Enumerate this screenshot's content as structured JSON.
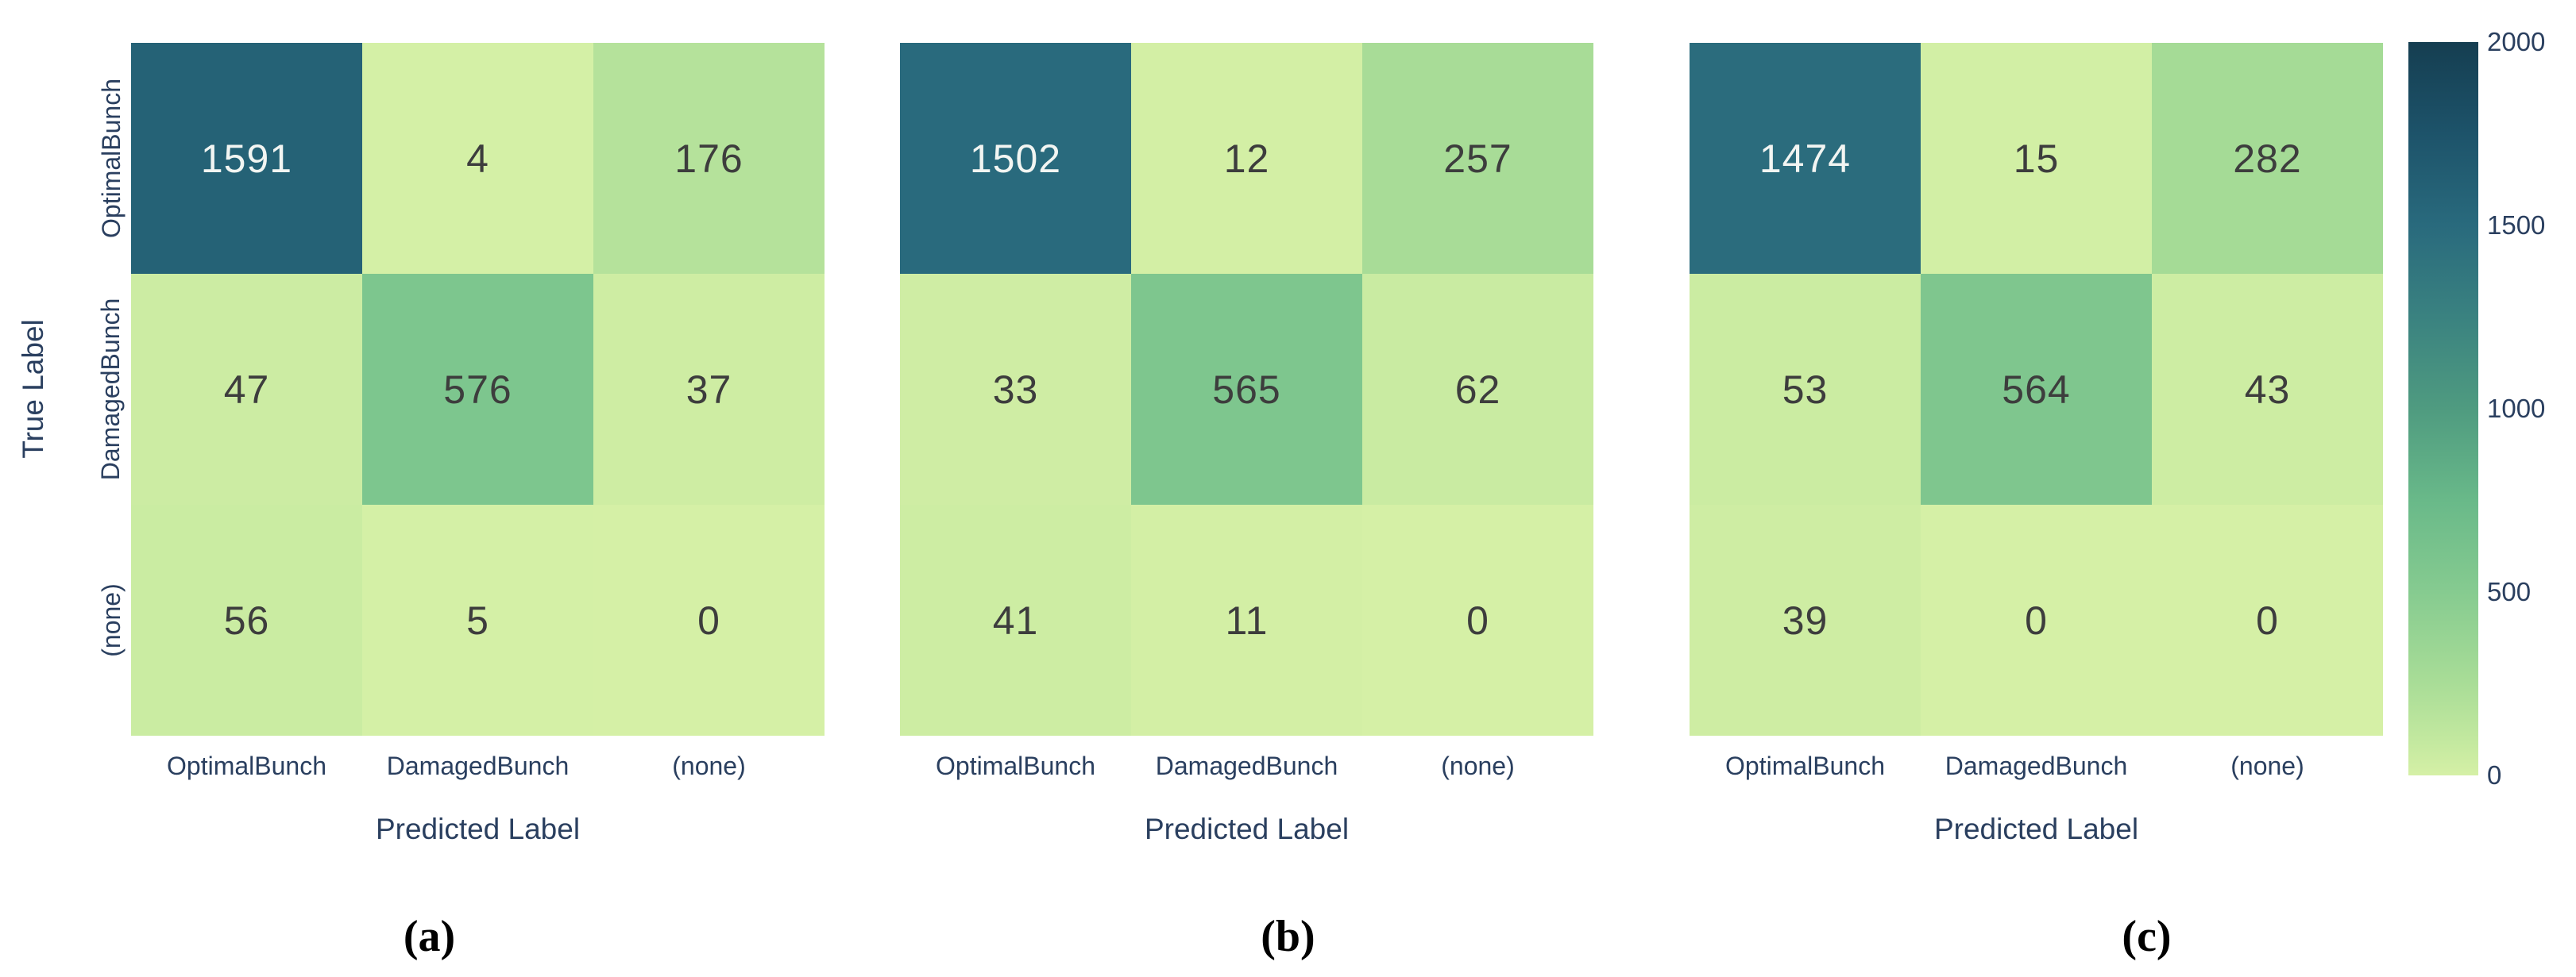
{
  "figure": {
    "y_axis_title": "True Label",
    "x_axis_title": "Predicted Label",
    "captions": [
      "(a)",
      "(b)",
      "(c)"
    ],
    "text_color": "#2a3f5f",
    "annotation_color_dark_cells": "#f2f5f2",
    "annotation_color_light_cells": "#3d3d3d"
  },
  "chart_data": [
    {
      "type": "heatmap",
      "caption": "(a)",
      "x_categories": [
        "OptimalBunch",
        "DamagedBunch",
        "(none)"
      ],
      "y_categories": [
        "OptimalBunch",
        "DamagedBunch",
        "(none)"
      ],
      "values": [
        [
          1591,
          4,
          176
        ],
        [
          47,
          576,
          37
        ],
        [
          56,
          5,
          0
        ]
      ],
      "xlabel": "Predicted Label",
      "ylabel": "True Label",
      "zmin": 0,
      "zmax": 2000,
      "show_y_tick_labels": true,
      "annotations_shown": true
    },
    {
      "type": "heatmap",
      "caption": "(b)",
      "x_categories": [
        "OptimalBunch",
        "DamagedBunch",
        "(none)"
      ],
      "y_categories": [
        "OptimalBunch",
        "DamagedBunch",
        "(none)"
      ],
      "values": [
        [
          1502,
          12,
          257
        ],
        [
          33,
          565,
          62
        ],
        [
          41,
          11,
          0
        ]
      ],
      "xlabel": "Predicted Label",
      "ylabel": "",
      "zmin": 0,
      "zmax": 2000,
      "show_y_tick_labels": false,
      "annotations_shown": true
    },
    {
      "type": "heatmap",
      "caption": "(c)",
      "x_categories": [
        "OptimalBunch",
        "DamagedBunch",
        "(none)"
      ],
      "y_categories": [
        "OptimalBunch",
        "DamagedBunch",
        "(none)"
      ],
      "values": [
        [
          1474,
          15,
          282
        ],
        [
          53,
          564,
          43
        ],
        [
          39,
          0,
          0
        ]
      ],
      "xlabel": "Predicted Label",
      "ylabel": "",
      "zmin": 0,
      "zmax": 2000,
      "show_y_tick_labels": false,
      "annotations_shown": true
    }
  ],
  "colorbar": {
    "min": 0,
    "max": 2000,
    "tick_values": [
      2000,
      1500,
      1000,
      500,
      0
    ],
    "tick_labels": [
      "2000",
      "1500",
      "1000",
      "500",
      "0"
    ],
    "colorscale": [
      {
        "t": 0.0,
        "color": "#d5f0a6"
      },
      {
        "t": 0.05,
        "color": "#c2e89f"
      },
      {
        "t": 0.125,
        "color": "#a9dd97"
      },
      {
        "t": 0.25,
        "color": "#86cb90"
      },
      {
        "t": 0.375,
        "color": "#69b989"
      },
      {
        "t": 0.5,
        "color": "#4f9b80"
      },
      {
        "t": 0.625,
        "color": "#3a8280"
      },
      {
        "t": 0.75,
        "color": "#296a7d"
      },
      {
        "t": 0.875,
        "color": "#1d536a"
      },
      {
        "t": 1.0,
        "color": "#153e51"
      }
    ]
  }
}
